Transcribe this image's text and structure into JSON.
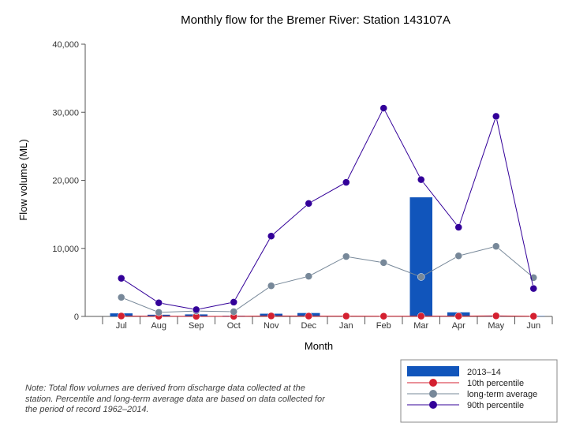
{
  "chart_data": {
    "type": "bar",
    "title": "Monthly flow for the Bremer River: Station 143107A",
    "xlabel": "Month",
    "ylabel": "Flow volume (ML)",
    "ylim": [
      0,
      40000
    ],
    "yticks": [
      "0",
      "10,000",
      "20,000",
      "30,000",
      "40,000"
    ],
    "ytick_values": [
      0,
      10000,
      20000,
      30000,
      40000
    ],
    "categories": [
      "Jul",
      "Aug",
      "Sep",
      "Oct",
      "Nov",
      "Dec",
      "Jan",
      "Feb",
      "Mar",
      "Apr",
      "May",
      "Jun"
    ],
    "grid": false,
    "legend_position": "bottom-right",
    "series": [
      {
        "name": "2013–14",
        "kind": "bar",
        "color": "#1155bb",
        "values": [
          450,
          250,
          300,
          100,
          400,
          500,
          50,
          30,
          17500,
          600,
          100,
          50
        ]
      },
      {
        "name": "10th percentile",
        "kind": "line",
        "color": "#d42030",
        "values": [
          60,
          30,
          10,
          10,
          70,
          50,
          50,
          30,
          40,
          40,
          80,
          30
        ]
      },
      {
        "name": "long-term average",
        "kind": "line",
        "color": "#778899",
        "values": [
          2800,
          600,
          800,
          700,
          4500,
          5900,
          8800,
          7900,
          5800,
          8900,
          10300,
          5700
        ]
      },
      {
        "name": "90th percentile",
        "kind": "line",
        "color": "#330099",
        "values": [
          5600,
          2000,
          1000,
          2100,
          11800,
          16600,
          19700,
          30600,
          20100,
          13100,
          29400,
          4100
        ]
      }
    ]
  },
  "note": "Note: Total flow volumes are derived from discharge data collected at the station. Percentile and long-term average data are based on data collected for the period of record 1962–2014."
}
